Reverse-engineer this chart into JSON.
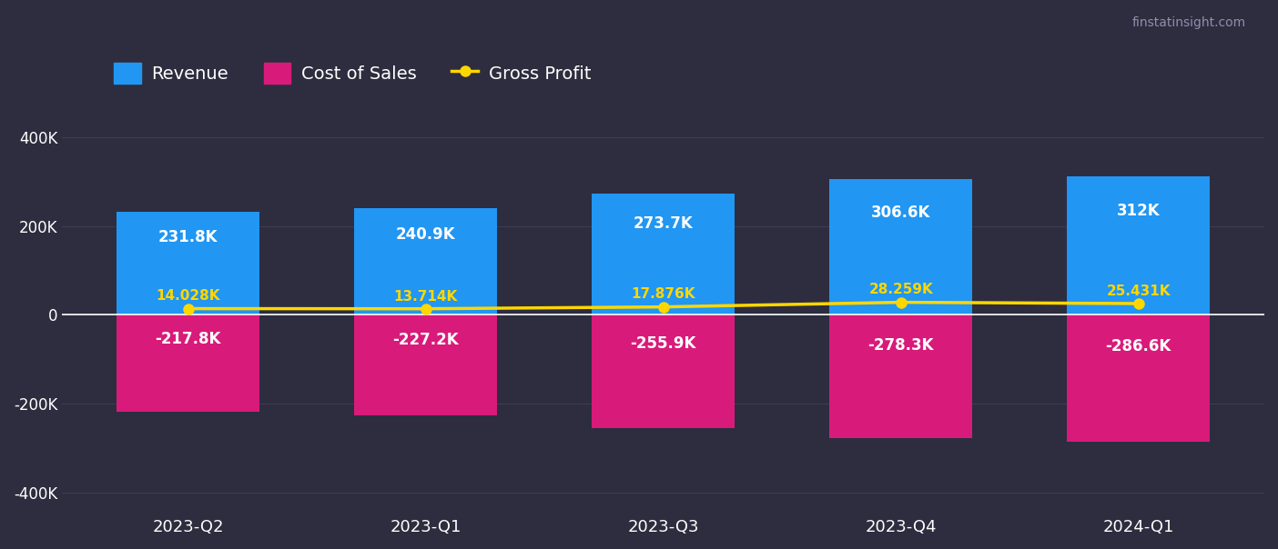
{
  "categories": [
    "2023-Q2",
    "2023-Q1",
    "2023-Q3",
    "2023-Q4",
    "2024-Q1"
  ],
  "revenue": [
    231800,
    240900,
    273700,
    306600,
    312000
  ],
  "cost_of_sales": [
    -217800,
    -227200,
    -255900,
    -278300,
    -286600
  ],
  "gross_profit": [
    14028,
    13714,
    17876,
    28259,
    25431
  ],
  "revenue_labels": [
    "231.8K",
    "240.9K",
    "273.7K",
    "306.6K",
    "312K"
  ],
  "cost_labels": [
    "-217.8K",
    "-227.2K",
    "-255.9K",
    "-278.3K",
    "-286.6K"
  ],
  "gross_labels": [
    "14.028K",
    "13.714K",
    "17.876K",
    "28.259K",
    "25.431K"
  ],
  "revenue_color": "#2196F3",
  "cost_color": "#D81B7A",
  "gross_profit_color": "#FFD700",
  "background_color": "#2d2d3f",
  "plot_bg_color": "#2d2d3f",
  "grid_color": "#3d3d55",
  "text_color": "#ffffff",
  "gross_label_color": "#FFD700",
  "ylim": [
    -450000,
    450000
  ],
  "yticks": [
    -400000,
    -200000,
    0,
    200000,
    400000
  ],
  "ytick_labels": [
    "-400K",
    "-200K",
    "0",
    "200K",
    "400K"
  ],
  "bar_width": 0.6,
  "watermark": "finstatinsight.com",
  "legend_revenue": "Revenue",
  "legend_cost": "Cost of Sales",
  "legend_gross": "Gross Profit"
}
